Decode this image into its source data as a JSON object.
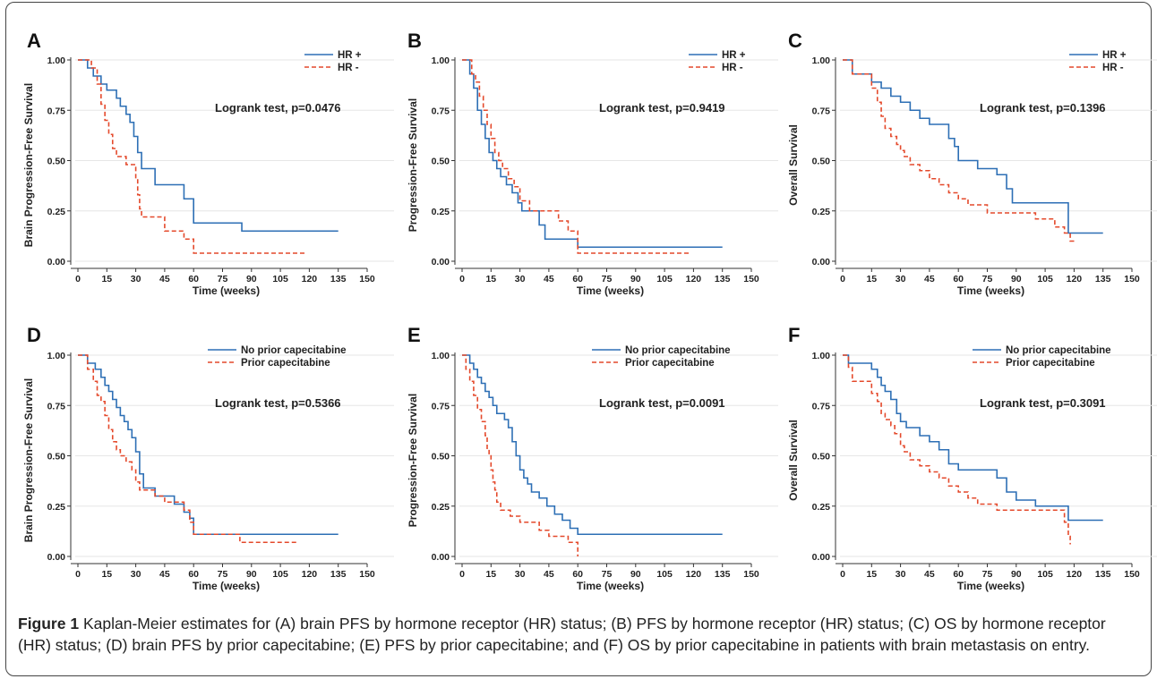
{
  "caption": {
    "title": "Figure 1",
    "text": "Kaplan-Meier estimates for (A) brain PFS by hormone receptor (HR) status; (B) PFS by hormone receptor (HR) status; (C) OS by hormone receptor (HR) status; (D) brain PFS by prior capecitabine; (E) PFS by prior capecitabine; and (F) OS by prior capecitabine in patients with brain metastasis on entry."
  },
  "colors": {
    "series1": "#2d6fb5",
    "series2": "#e4492b",
    "grid": "#e6e6e6"
  },
  "chart_data": [
    {
      "panel": "A",
      "type": "line",
      "xlabel": "Time (weeks)",
      "ylabel": "Brain Progression-Free Survival",
      "xlim": [
        0,
        150
      ],
      "ylim": [
        0,
        1
      ],
      "xticks": [
        0,
        15,
        30,
        45,
        60,
        75,
        90,
        105,
        120,
        135,
        150
      ],
      "yticks": [
        "0.00",
        "0.25",
        "0.50",
        "0.75",
        "1.00"
      ],
      "grid": true,
      "legend_position": "top-right",
      "annotation": "Logrank test, p=0.0476",
      "series": [
        {
          "name": "HR +",
          "style": "solid",
          "x": [
            0,
            5,
            8,
            12,
            15,
            20,
            22,
            25,
            27,
            29,
            31,
            33,
            40,
            50,
            55,
            60,
            85,
            135
          ],
          "y": [
            1,
            0.96,
            0.92,
            0.88,
            0.85,
            0.81,
            0.77,
            0.73,
            0.69,
            0.62,
            0.54,
            0.46,
            0.38,
            0.38,
            0.31,
            0.19,
            0.15,
            0.15
          ]
        },
        {
          "name": "HR -",
          "style": "dashed",
          "x": [
            0,
            7,
            10,
            12,
            14,
            16,
            18,
            20,
            25,
            30,
            31,
            32,
            33,
            35,
            38,
            45,
            50,
            55,
            60,
            118
          ],
          "y": [
            1,
            0.96,
            0.88,
            0.78,
            0.7,
            0.63,
            0.56,
            0.52,
            0.48,
            0.41,
            0.33,
            0.26,
            0.22,
            0.22,
            0.22,
            0.15,
            0.15,
            0.11,
            0.04,
            0.04
          ]
        }
      ]
    },
    {
      "panel": "B",
      "type": "line",
      "xlabel": "Time (weeks)",
      "ylabel": "Progression-Free Survival",
      "xlim": [
        0,
        150
      ],
      "ylim": [
        0,
        1
      ],
      "xticks": [
        0,
        15,
        30,
        45,
        60,
        75,
        90,
        105,
        120,
        135,
        150
      ],
      "yticks": [
        "0.00",
        "0.25",
        "0.50",
        "0.75",
        "1.00"
      ],
      "grid": true,
      "legend_position": "top-right",
      "annotation": "Logrank test, p=0.9419",
      "series": [
        {
          "name": "HR +",
          "style": "solid",
          "x": [
            0,
            4,
            6,
            8,
            10,
            12,
            14,
            16,
            18,
            20,
            23,
            26,
            29,
            31,
            35,
            40,
            43,
            50,
            60,
            135
          ],
          "y": [
            1,
            0.93,
            0.86,
            0.75,
            0.68,
            0.61,
            0.54,
            0.5,
            0.46,
            0.42,
            0.38,
            0.34,
            0.29,
            0.25,
            0.25,
            0.18,
            0.11,
            0.11,
            0.07,
            0.07
          ]
        },
        {
          "name": "HR -",
          "style": "dashed",
          "x": [
            0,
            5,
            7,
            9,
            11,
            13,
            15,
            17,
            19,
            21,
            24,
            27,
            30,
            35,
            40,
            45,
            50,
            55,
            60,
            118
          ],
          "y": [
            1,
            0.93,
            0.89,
            0.82,
            0.75,
            0.68,
            0.61,
            0.54,
            0.5,
            0.46,
            0.41,
            0.37,
            0.3,
            0.25,
            0.25,
            0.25,
            0.2,
            0.15,
            0.04,
            0.04
          ]
        }
      ]
    },
    {
      "panel": "C",
      "type": "line",
      "xlabel": "Time (weeks)",
      "ylabel": "Overall Survival",
      "xlim": [
        0,
        150
      ],
      "ylim": [
        0,
        1
      ],
      "xticks": [
        0,
        15,
        30,
        45,
        60,
        75,
        90,
        105,
        120,
        135,
        150
      ],
      "yticks": [
        "0.00",
        "0.25",
        "0.50",
        "0.75",
        "1.00"
      ],
      "grid": true,
      "legend_position": "top-right",
      "annotation": "Logrank test, p=0.1396",
      "series": [
        {
          "name": "HR +",
          "style": "solid",
          "x": [
            0,
            5,
            15,
            20,
            25,
            30,
            35,
            40,
            45,
            55,
            58,
            60,
            65,
            70,
            75,
            80,
            85,
            88,
            115,
            117,
            135
          ],
          "y": [
            1,
            0.93,
            0.89,
            0.86,
            0.82,
            0.79,
            0.75,
            0.71,
            0.68,
            0.61,
            0.57,
            0.5,
            0.5,
            0.46,
            0.46,
            0.43,
            0.36,
            0.29,
            0.29,
            0.14,
            0.14
          ]
        },
        {
          "name": "HR -",
          "style": "dashed",
          "x": [
            0,
            5,
            15,
            18,
            20,
            22,
            25,
            28,
            30,
            32,
            35,
            40,
            45,
            50,
            55,
            60,
            65,
            70,
            75,
            85,
            90,
            100,
            105,
            110,
            115,
            118,
            121
          ],
          "y": [
            1,
            0.93,
            0.86,
            0.79,
            0.72,
            0.66,
            0.62,
            0.58,
            0.55,
            0.52,
            0.48,
            0.45,
            0.41,
            0.38,
            0.34,
            0.31,
            0.28,
            0.28,
            0.24,
            0.24,
            0.24,
            0.21,
            0.21,
            0.17,
            0.14,
            0.1,
            0.1
          ]
        }
      ]
    },
    {
      "panel": "D",
      "type": "line",
      "xlabel": "Time (weeks)",
      "ylabel": "Brain Progression-Free Survival",
      "xlim": [
        0,
        150
      ],
      "ylim": [
        0,
        1
      ],
      "xticks": [
        0,
        15,
        30,
        45,
        60,
        75,
        90,
        105,
        120,
        135,
        150
      ],
      "yticks": [
        "0.00",
        "0.25",
        "0.50",
        "0.75",
        "1.00"
      ],
      "grid": true,
      "legend_position": "top-right",
      "annotation": "Logrank test, p=0.5366",
      "series": [
        {
          "name": "No prior capecitabine",
          "style": "solid",
          "x": [
            0,
            5,
            9,
            12,
            14,
            16,
            18,
            20,
            22,
            24,
            26,
            28,
            30,
            32,
            34,
            40,
            45,
            50,
            55,
            58,
            60,
            135
          ],
          "y": [
            1,
            0.96,
            0.93,
            0.89,
            0.85,
            0.82,
            0.78,
            0.74,
            0.7,
            0.67,
            0.63,
            0.59,
            0.52,
            0.41,
            0.34,
            0.3,
            0.3,
            0.26,
            0.22,
            0.19,
            0.11,
            0.11
          ]
        },
        {
          "name": "Prior capecitabine",
          "style": "dashed",
          "x": [
            0,
            5,
            8,
            10,
            12,
            14,
            16,
            18,
            20,
            22,
            25,
            28,
            30,
            32,
            35,
            40,
            45,
            50,
            55,
            58,
            60,
            84,
            114
          ],
          "y": [
            1,
            0.93,
            0.87,
            0.8,
            0.77,
            0.7,
            0.63,
            0.57,
            0.53,
            0.5,
            0.47,
            0.43,
            0.37,
            0.33,
            0.33,
            0.3,
            0.27,
            0.27,
            0.23,
            0.17,
            0.11,
            0.07,
            0.07
          ]
        }
      ]
    },
    {
      "panel": "E",
      "type": "line",
      "xlabel": "Time (weeks)",
      "ylabel": "Progression-Free Survival",
      "xlim": [
        0,
        150
      ],
      "ylim": [
        0,
        1
      ],
      "xticks": [
        0,
        15,
        30,
        45,
        60,
        75,
        90,
        105,
        120,
        135,
        150
      ],
      "yticks": [
        "0.00",
        "0.25",
        "0.50",
        "0.75",
        "1.00"
      ],
      "grid": true,
      "legend_position": "top-right",
      "annotation": "Logrank test, p=0.0091",
      "series": [
        {
          "name": "No prior capecitabine",
          "style": "solid",
          "x": [
            0,
            4,
            6,
            8,
            10,
            12,
            14,
            16,
            18,
            20,
            22,
            24,
            26,
            28,
            30,
            32,
            34,
            36,
            40,
            44,
            48,
            52,
            56,
            60,
            135
          ],
          "y": [
            1,
            0.96,
            0.93,
            0.89,
            0.86,
            0.82,
            0.79,
            0.75,
            0.71,
            0.71,
            0.68,
            0.64,
            0.57,
            0.5,
            0.43,
            0.39,
            0.36,
            0.32,
            0.29,
            0.25,
            0.21,
            0.18,
            0.14,
            0.11,
            0.11
          ]
        },
        {
          "name": "Prior capecitabine",
          "style": "dashed",
          "x": [
            0,
            2,
            4,
            6,
            8,
            10,
            12,
            13,
            14,
            15,
            16,
            17,
            18,
            20,
            22,
            25,
            30,
            35,
            40,
            45,
            50,
            55,
            60
          ],
          "y": [
            1,
            0.93,
            0.87,
            0.8,
            0.73,
            0.67,
            0.6,
            0.53,
            0.5,
            0.43,
            0.37,
            0.33,
            0.27,
            0.23,
            0.23,
            0.2,
            0.17,
            0.17,
            0.13,
            0.1,
            0.1,
            0.07,
            0.0
          ]
        }
      ]
    },
    {
      "panel": "F",
      "type": "line",
      "xlabel": "Time (weeks)",
      "ylabel": "Overall Survival",
      "xlim": [
        0,
        150
      ],
      "ylim": [
        0,
        1
      ],
      "xticks": [
        0,
        15,
        30,
        45,
        60,
        75,
        90,
        105,
        120,
        135,
        150
      ],
      "yticks": [
        "0.00",
        "0.25",
        "0.50",
        "0.75",
        "1.00"
      ],
      "grid": true,
      "legend_position": "top-right",
      "annotation": "Logrank test, p=0.3091",
      "series": [
        {
          "name": "No prior capecitabine",
          "style": "solid",
          "x": [
            0,
            3,
            10,
            15,
            18,
            20,
            22,
            25,
            28,
            30,
            33,
            35,
            40,
            45,
            50,
            55,
            60,
            70,
            80,
            85,
            90,
            95,
            100,
            115,
            117,
            135
          ],
          "y": [
            1,
            0.96,
            0.96,
            0.93,
            0.89,
            0.85,
            0.82,
            0.78,
            0.71,
            0.67,
            0.64,
            0.64,
            0.6,
            0.57,
            0.53,
            0.46,
            0.43,
            0.43,
            0.39,
            0.32,
            0.28,
            0.28,
            0.25,
            0.25,
            0.18,
            0.18
          ]
        },
        {
          "name": "Prior capecitabine",
          "style": "dashed",
          "x": [
            0,
            3,
            5,
            10,
            15,
            18,
            20,
            22,
            25,
            27,
            30,
            32,
            35,
            40,
            45,
            50,
            55,
            60,
            65,
            70,
            75,
            80,
            85,
            90,
            100,
            110,
            115,
            117,
            118
          ],
          "y": [
            1,
            0.94,
            0.87,
            0.87,
            0.81,
            0.77,
            0.71,
            0.68,
            0.65,
            0.61,
            0.55,
            0.52,
            0.48,
            0.45,
            0.42,
            0.39,
            0.35,
            0.32,
            0.29,
            0.26,
            0.26,
            0.23,
            0.23,
            0.23,
            0.23,
            0.23,
            0.17,
            0.1,
            0.06
          ]
        }
      ]
    }
  ]
}
